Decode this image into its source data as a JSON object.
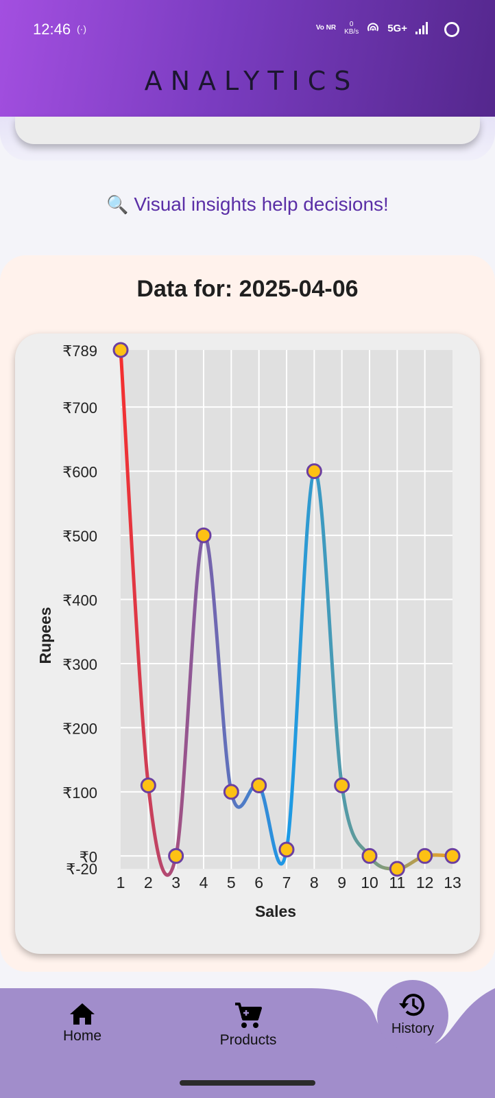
{
  "status_bar": {
    "time": "12:46",
    "hotspot_icon": "(·)",
    "vonr": "Vo NR",
    "kbs_value": "0",
    "kbs_unit": "KB/s",
    "network": "5G+"
  },
  "header": {
    "title": "ANALYTICS"
  },
  "tagline": {
    "icon": "🔍",
    "text": "Visual insights help decisions!"
  },
  "data_card": {
    "title": "Data for: 2025-04-06"
  },
  "chart_data": {
    "type": "line",
    "xlabel": "Sales",
    "ylabel": "Rupees",
    "x": [
      1,
      2,
      3,
      4,
      5,
      6,
      7,
      8,
      9,
      10,
      11,
      12,
      13
    ],
    "series": [
      {
        "values": [
          789,
          110,
          0,
          500,
          100,
          110,
          10,
          600,
          110,
          0,
          -20,
          0,
          0
        ]
      }
    ],
    "xlim": [
      1,
      13
    ],
    "ylim": [
      -20,
      789
    ],
    "ytick_values": [
      0,
      100,
      200,
      300,
      400,
      500,
      600,
      700,
      789
    ],
    "ytick_labels": [
      "₹0",
      "₹100",
      "₹200",
      "₹300",
      "₹400",
      "₹500",
      "₹600",
      "₹700",
      "₹789"
    ],
    "ymin_label": "₹-20",
    "xtick_labels": [
      "1",
      "2",
      "3",
      "4",
      "5",
      "6",
      "7",
      "8",
      "9",
      "10",
      "11",
      "12",
      "13"
    ],
    "grid": true,
    "curved": true,
    "line_gradient": [
      "#f52e2e",
      "#7d5fa8",
      "#1a9ae8",
      "#6b9a8c",
      "#f0a020"
    ],
    "marker_fill": "#fdc114",
    "marker_stroke": "#6b3fa0",
    "plot_background": "#e0e0e0"
  },
  "bottom_nav": {
    "home_label": "Home",
    "products_label": "Products",
    "history_label": "History",
    "background": "#a18dcb"
  }
}
